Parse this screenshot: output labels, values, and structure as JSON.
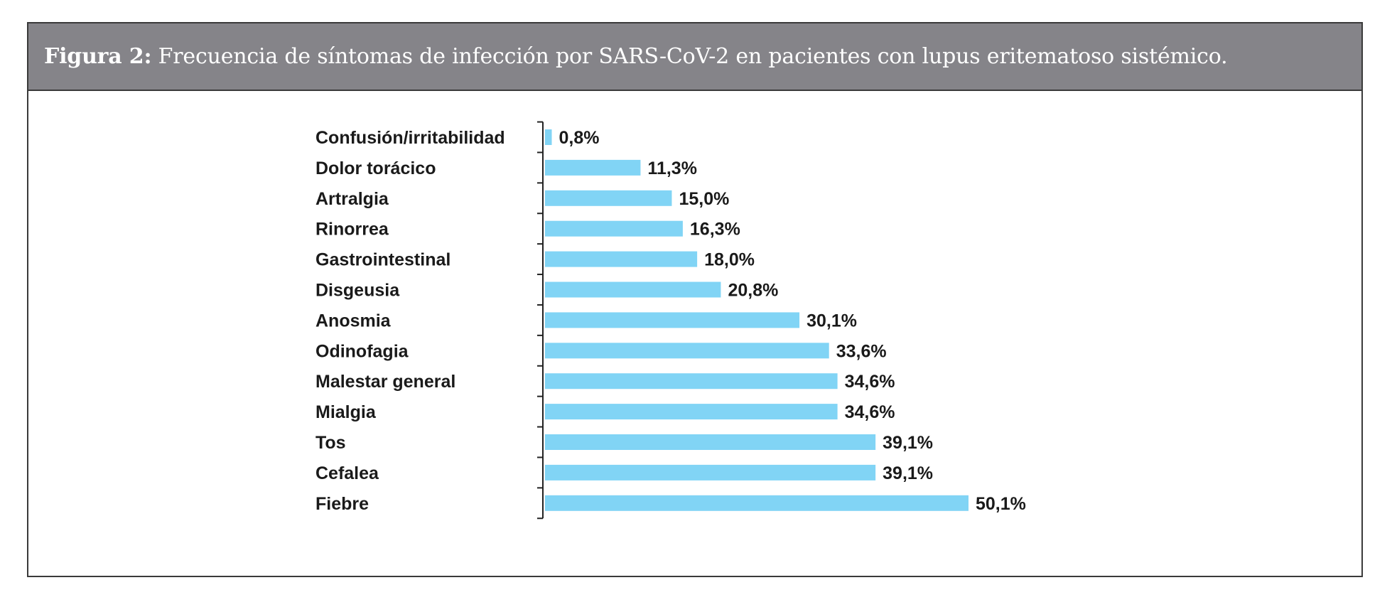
{
  "figure": {
    "label": "Figura 2:",
    "caption": "Frecuencia de síntomas de infección por SARS-CoV-2 en pacientes con lupus eritematoso sistémico."
  },
  "colors": {
    "bar": "#81d4f5",
    "header_bg": "#858489",
    "axis": "#222222"
  },
  "chart_data": {
    "type": "bar",
    "orientation": "horizontal",
    "title": "Frecuencia de síntomas de infección por SARS-CoV-2 en pacientes con lupus eritematoso sistémico.",
    "xlabel": "",
    "ylabel": "",
    "unit": "%",
    "categories": [
      "Confusión/irritabilidad",
      "Dolor torácico",
      "Artralgia",
      "Rinorrea",
      "Gastrointestinal",
      "Disgeusia",
      "Anosmia",
      "Odinofagia",
      "Malestar general",
      "Mialgia",
      "Tos",
      "Cefalea",
      "Fiebre"
    ],
    "values": [
      0.8,
      11.3,
      15.0,
      16.3,
      18.0,
      20.8,
      30.1,
      33.6,
      34.6,
      34.6,
      39.1,
      39.1,
      50.1
    ],
    "value_labels": [
      "0,8%",
      "11,3%",
      "15,0%",
      "16,3%",
      "18,0%",
      "20,8%",
      "30,1%",
      "33,6%",
      "34,6%",
      "34,6%",
      "39,1%",
      "39,1%",
      "50,1%"
    ],
    "xlim": [
      0,
      50.1
    ],
    "grid": false,
    "legend": "none"
  }
}
